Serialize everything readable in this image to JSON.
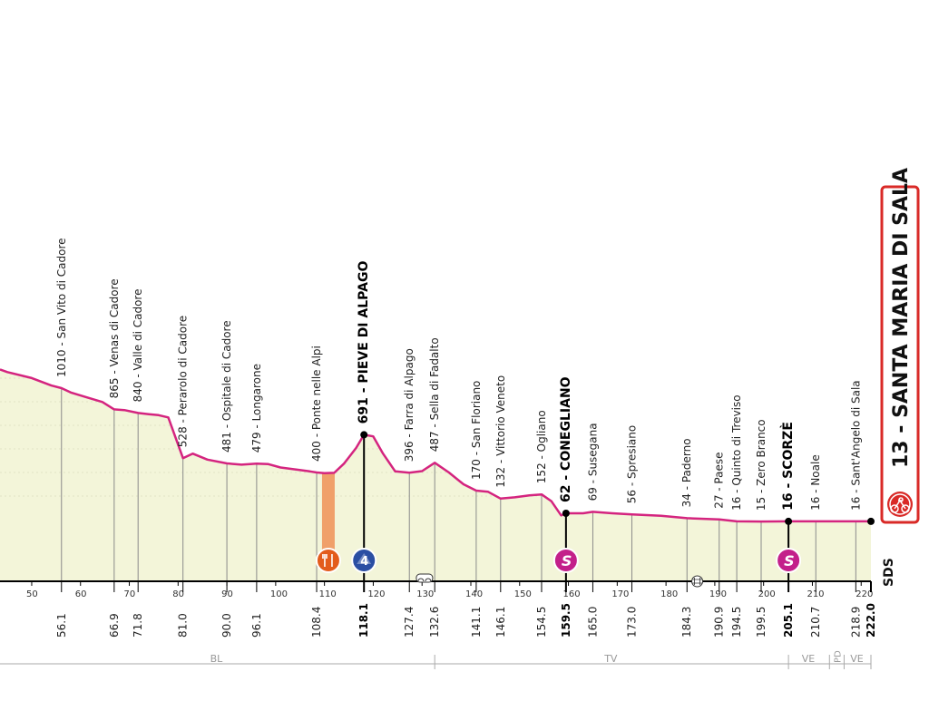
{
  "stage_title": "13 - SANTA MARIA DI SALA",
  "sponsor_mark": "SDS",
  "colors": {
    "profile_line": "#d4247f",
    "profile_fill": "#f3f5d9",
    "gpm_fill": "#2b4fa3",
    "sprint_fill": "#c3208a",
    "feed_fill": "#e35c1c",
    "feed_zone": "#f0a06a",
    "title_border": "#d92a27"
  },
  "markers": [
    {
      "type": "feed-zone",
      "km": 110.8,
      "icon": "cutlery-icon"
    },
    {
      "type": "gpm",
      "km": 118.1,
      "label": "4",
      "icon": "mountain-gpm-icon"
    },
    {
      "type": "sprint",
      "km": 159.5,
      "label": "S",
      "icon": "sprint-icon"
    },
    {
      "type": "sprint",
      "km": 205.1,
      "label": "S",
      "icon": "sprint-icon"
    },
    {
      "type": "tunnel",
      "km": 130.5,
      "icon": "tunnel-icon"
    },
    {
      "type": "level-crossing",
      "km": 186.4,
      "icon": "railway-crossing-icon"
    }
  ],
  "chart_data": {
    "type": "area",
    "title": "13 - SANTA MARIA DI SALA",
    "xlim": [
      43.5,
      222.0
    ],
    "ylim": [
      0,
      1200
    ],
    "x_ticks": [
      50,
      60,
      70,
      80,
      90,
      100,
      110,
      120,
      130,
      140,
      150,
      160,
      170,
      180,
      190,
      200,
      210,
      220
    ],
    "profile": {
      "x": [
        43.5,
        45,
        50,
        54,
        56.1,
        58,
        61,
        64.5,
        66.9,
        69,
        71.8,
        74,
        76,
        78,
        81.0,
        83,
        86,
        90.0,
        93,
        96.1,
        98.5,
        101,
        104,
        107,
        108.4,
        110,
        112,
        114,
        116.5,
        118.1,
        120,
        122,
        124.5,
        127.4,
        130,
        132.6,
        135.5,
        138.5,
        141.1,
        143.5,
        146.1,
        149,
        152,
        154.5,
        156.5,
        158.5,
        159.5,
        161.5,
        163,
        165.0,
        169,
        173.0,
        179,
        184.3,
        190.9,
        194.5,
        199.5,
        205.1,
        210.7,
        218.9,
        222.0
      ],
      "y": [
        1150,
        1130,
        1085,
        1030,
        1010,
        980,
        950,
        915,
        865,
        860,
        840,
        832,
        825,
        810,
        528,
        560,
        515,
        481,
        470,
        479,
        475,
        445,
        428,
        410,
        400,
        392,
        395,
        480,
        600,
        691,
        680,
        560,
        410,
        396,
        412,
        487,
        400,
        250,
        170,
        165,
        132,
        138,
        147,
        152,
        120,
        50,
        62,
        62,
        62,
        69,
        62,
        56,
        48,
        34,
        27,
        16,
        15,
        16,
        16,
        16,
        16
      ]
    },
    "waypoints": [
      {
        "alt": 1010,
        "name": "San Vito di Cadore",
        "km": 56.1,
        "major": false
      },
      {
        "alt": 865,
        "name": "Venas di Cadore",
        "km": 66.9,
        "major": false
      },
      {
        "alt": 840,
        "name": "Valle di Cadore",
        "km": 71.8,
        "major": false
      },
      {
        "alt": 528,
        "name": "Perarolo di Cadore",
        "km": 81.0,
        "major": false
      },
      {
        "alt": 481,
        "name": "Ospitale di Cadore",
        "km": 90.0,
        "major": false
      },
      {
        "alt": 479,
        "name": "Longarone",
        "km": 96.1,
        "major": false
      },
      {
        "alt": 400,
        "name": "Ponte nelle Alpi",
        "km": 108.4,
        "major": false
      },
      {
        "alt": 691,
        "name": "PIEVE DI ALPAGO",
        "km": 118.1,
        "major": true
      },
      {
        "alt": 396,
        "name": "Farra di Alpago",
        "km": 127.4,
        "major": false
      },
      {
        "alt": 487,
        "name": "Sella di Fadalto",
        "km": 132.6,
        "major": false
      },
      {
        "alt": 170,
        "name": "San Floriano",
        "km": 141.1,
        "major": false
      },
      {
        "alt": 132,
        "name": "Vittorio Veneto",
        "km": 146.1,
        "major": false
      },
      {
        "alt": 152,
        "name": "Ogliano",
        "km": 154.5,
        "major": false
      },
      {
        "alt": 62,
        "name": "CONEGLIANO",
        "km": 159.5,
        "major": true
      },
      {
        "alt": 69,
        "name": "Susegana",
        "km": 165.0,
        "major": false
      },
      {
        "alt": 56,
        "name": "Spresiano",
        "km": 173.0,
        "major": false
      },
      {
        "alt": 34,
        "name": "Paderno",
        "km": 184.3,
        "major": false
      },
      {
        "alt": 27,
        "name": "Paese",
        "km": 190.9,
        "major": false
      },
      {
        "alt": 16,
        "name": "Quinto di Treviso",
        "km": 194.5,
        "major": false
      },
      {
        "alt": 15,
        "name": "Zero Branco",
        "km": 199.5,
        "major": false
      },
      {
        "alt": 16,
        "name": "SCORZÈ",
        "km": 205.1,
        "major": true
      },
      {
        "alt": 16,
        "name": "Noale",
        "km": 210.7,
        "major": false
      },
      {
        "alt": 16,
        "name": "Sant'Angelo di Sala",
        "km": 218.9,
        "major": false
      }
    ],
    "km_labels": [
      {
        "km": 56.1,
        "text": "56.1",
        "major": false
      },
      {
        "km": 66.9,
        "text": "66.9",
        "major": false
      },
      {
        "km": 71.8,
        "text": "71.8",
        "major": false
      },
      {
        "km": 81.0,
        "text": "81.0",
        "major": false
      },
      {
        "km": 90.0,
        "text": "90.0",
        "major": false
      },
      {
        "km": 96.1,
        "text": "96.1",
        "major": false
      },
      {
        "km": 108.4,
        "text": "108.4",
        "major": false
      },
      {
        "km": 118.1,
        "text": "118.1",
        "major": true
      },
      {
        "km": 127.4,
        "text": "127.4",
        "major": false
      },
      {
        "km": 132.6,
        "text": "132.6",
        "major": false
      },
      {
        "km": 141.1,
        "text": "141.1",
        "major": false
      },
      {
        "km": 146.1,
        "text": "146.1",
        "major": false
      },
      {
        "km": 154.5,
        "text": "154.5",
        "major": false
      },
      {
        "km": 159.5,
        "text": "159.5",
        "major": true
      },
      {
        "km": 165.0,
        "text": "165.0",
        "major": false
      },
      {
        "km": 173.0,
        "text": "173.0",
        "major": false
      },
      {
        "km": 184.3,
        "text": "184.3",
        "major": false
      },
      {
        "km": 190.9,
        "text": "190.9",
        "major": false
      },
      {
        "km": 194.5,
        "text": "194.5",
        "major": false
      },
      {
        "km": 199.5,
        "text": "199.5",
        "major": false
      },
      {
        "km": 205.1,
        "text": "205.1",
        "major": true
      },
      {
        "km": 210.7,
        "text": "210.7",
        "major": false
      },
      {
        "km": 218.9,
        "text": "218.9",
        "major": false
      },
      {
        "km": 222.0,
        "text": "222.0",
        "major": true
      }
    ],
    "provinces": [
      {
        "name": "BL",
        "from_km": 43.5,
        "to_km": 132.6
      },
      {
        "name": "TV",
        "from_km": 132.6,
        "to_km": 205.1
      },
      {
        "name": "VE",
        "from_km": 205.1,
        "to_km": 213.5
      },
      {
        "name": "PD",
        "from_km": 213.5,
        "to_km": 216.5
      },
      {
        "name": "VE",
        "from_km": 216.5,
        "to_km": 222.0
      }
    ]
  }
}
